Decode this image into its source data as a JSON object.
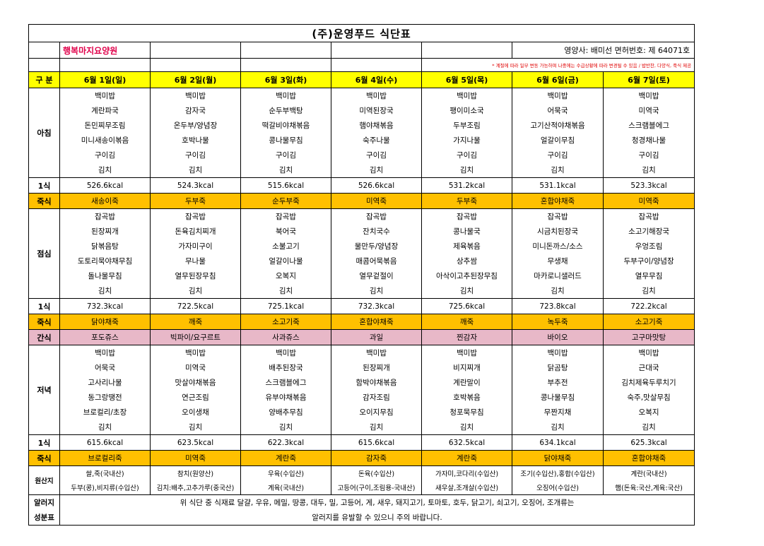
{
  "title": "(주)운영푸드 식단표",
  "institution": "행복마지요양원",
  "dietitian": "영양사: 배미선  면허번호: 제 64071호",
  "notice": "* 계절에 따라 일부 변동 가능하며 나중에는 수급상황에 따라 변경될 수 있음 / 밥반찬, 다양식, 죽식 제공",
  "header": {
    "label": "구 분",
    "days": [
      "6월 1일(일)",
      "6월 2일(월)",
      "6월 3일(화)",
      "6월 4일(수)",
      "6월 5일(목)",
      "6월 6일(금)",
      "6월 7일(토)"
    ]
  },
  "breakfast": {
    "label": "아침",
    "rows": [
      [
        "백미밥",
        "백미밥",
        "백미밥",
        "백미밥",
        "백미밥",
        "백미밥",
        "백미밥"
      ],
      [
        "계란파국",
        "감자국",
        "순두부백탕",
        "미역된장국",
        "팽이미소국",
        "어묵국",
        "미역국"
      ],
      [
        "돈민찌무조림",
        "온두부/양념장",
        "떡갈비야채볶음",
        "햄야채볶음",
        "두부조림",
        "고기산적야채볶음",
        "스크램블에그"
      ],
      [
        "미니새송이볶음",
        "호박나물",
        "콩나물무침",
        "숙주나물",
        "가지나물",
        "얼갈이무침",
        "청경채나물"
      ],
      [
        "구이김",
        "구이김",
        "구이김",
        "구이김",
        "구이김",
        "구이김",
        "구이김"
      ],
      [
        "김치",
        "김치",
        "김치",
        "김치",
        "김치",
        "김치",
        "김치"
      ]
    ],
    "kcal_label": "1식",
    "kcal": [
      "526.6kcal",
      "524.3kcal",
      "515.6kcal",
      "526.6kcal",
      "531.2kcal",
      "531.1kcal",
      "523.3kcal"
    ],
    "porridge_label": "죽식",
    "porridge": [
      "새송이죽",
      "두부죽",
      "순두부죽",
      "미역죽",
      "두부죽",
      "혼합야채죽",
      "미역죽"
    ]
  },
  "lunch": {
    "label": "점심",
    "rows": [
      [
        "잡곡밥",
        "잡곡밥",
        "잡곡밥",
        "잡곡밥",
        "잡곡밥",
        "잡곡밥",
        "잡곡밥"
      ],
      [
        "된장찌개",
        "돈육김치찌개",
        "북어국",
        "잔치국수",
        "콩나물국",
        "시금치된장국",
        "소고기해장국"
      ],
      [
        "닭볶음탕",
        "가자미구이",
        "소불고기",
        "물만두/양념장",
        "제육볶음",
        "미니돈까스/소스",
        "우엉조림"
      ],
      [
        "도토리묵야채무침",
        "무나물",
        "얼갈이나물",
        "매콤어묵볶음",
        "상추쌈",
        "무생채",
        "두부구이/양념장"
      ],
      [
        "돌나물무침",
        "열무된장무침",
        "오복지",
        "열무겉절이",
        "아삭이고추된장무침",
        "마카로니샐러드",
        "열무무침"
      ],
      [
        "김치",
        "김치",
        "김치",
        "김치",
        "김치",
        "김치",
        "김치"
      ]
    ],
    "kcal_label": "1식",
    "kcal": [
      "732.3kcal",
      "722.5kcal",
      "725.1kcal",
      "732.3kcal",
      "725.6kcal",
      "723.8kcal",
      "722.2kcal"
    ],
    "porridge_label": "죽식",
    "porridge": [
      "닭야채죽",
      "깨죽",
      "소고기죽",
      "혼합야채죽",
      "깨죽",
      "녹두죽",
      "소고기죽"
    ]
  },
  "snack": {
    "label": "간식",
    "items": [
      "포도쥬스",
      "빅파이/요구르트",
      "사과쥬스",
      "과일",
      "찐감자",
      "바이오",
      "고구마맛탕"
    ]
  },
  "dinner": {
    "label": "저녁",
    "rows": [
      [
        "백미밥",
        "백미밥",
        "백미밥",
        "백미밥",
        "백미밥",
        "백미밥",
        "백미밥"
      ],
      [
        "어묵국",
        "미역국",
        "배추된장국",
        "된장찌개",
        "비지찌개",
        "닭곰탕",
        "근대국"
      ],
      [
        "고사리나물",
        "맛살야채볶음",
        "스크램블에그",
        "함박야채볶음",
        "계란말이",
        "부추전",
        "김치제육두루치기"
      ],
      [
        "동그랑땡전",
        "연근조림",
        "유부야채볶음",
        "감자조림",
        "호박볶음",
        "콩나물무침",
        "숙주,맛살무침"
      ],
      [
        "브로컬리/초장",
        "오이생채",
        "양배추무침",
        "오이지무침",
        "청포묵무침",
        "무짠지채",
        "오복지"
      ],
      [
        "김치",
        "김치",
        "김치",
        "김치",
        "김치",
        "김치",
        "김치"
      ]
    ],
    "kcal_label": "1식",
    "kcal": [
      "615.6kcal",
      "623.5kcal",
      "622.3kcal",
      "615.6kcal",
      "632.5kcal",
      "634.1kcal",
      "625.3kcal"
    ],
    "porridge_label": "죽식",
    "porridge": [
      "브로컬리죽",
      "미역죽",
      "계란죽",
      "감자죽",
      "계란죽",
      "닭야채죽",
      "혼합야채죽"
    ]
  },
  "origin": {
    "label": "원산지",
    "row1": [
      "쌀,죽(국내산)",
      "참치(원양산)",
      "우육(수입산)",
      "돈육(수입산)",
      "가자미,코다리(수입산)",
      "조기(수입산),홍합(수입산)",
      "계란(국내산)"
    ],
    "row2": [
      "두부(콩),비지류(수입산)",
      "김치:배추,고추가루(중국산)",
      "계육(국내산)",
      "고등어(구이,조림용-국내산)",
      "새우살,조개살(수입산)",
      "오징어(수입산)",
      "햄(돈육:국산,계육:국산)"
    ]
  },
  "allergy": {
    "label1": "알러지",
    "label2": "성분표",
    "line1": "위 식단 중 식재료 달걀, 우유, 메밀, 땅콩, 대두, 밀, 고등어, 게, 새우, 돼지고기, 토마토, 호두, 닭고기, 쇠고기, 오징어, 조개류는",
    "line2": "알러지를 유발할 수 있으니 주의 바랍니다."
  }
}
